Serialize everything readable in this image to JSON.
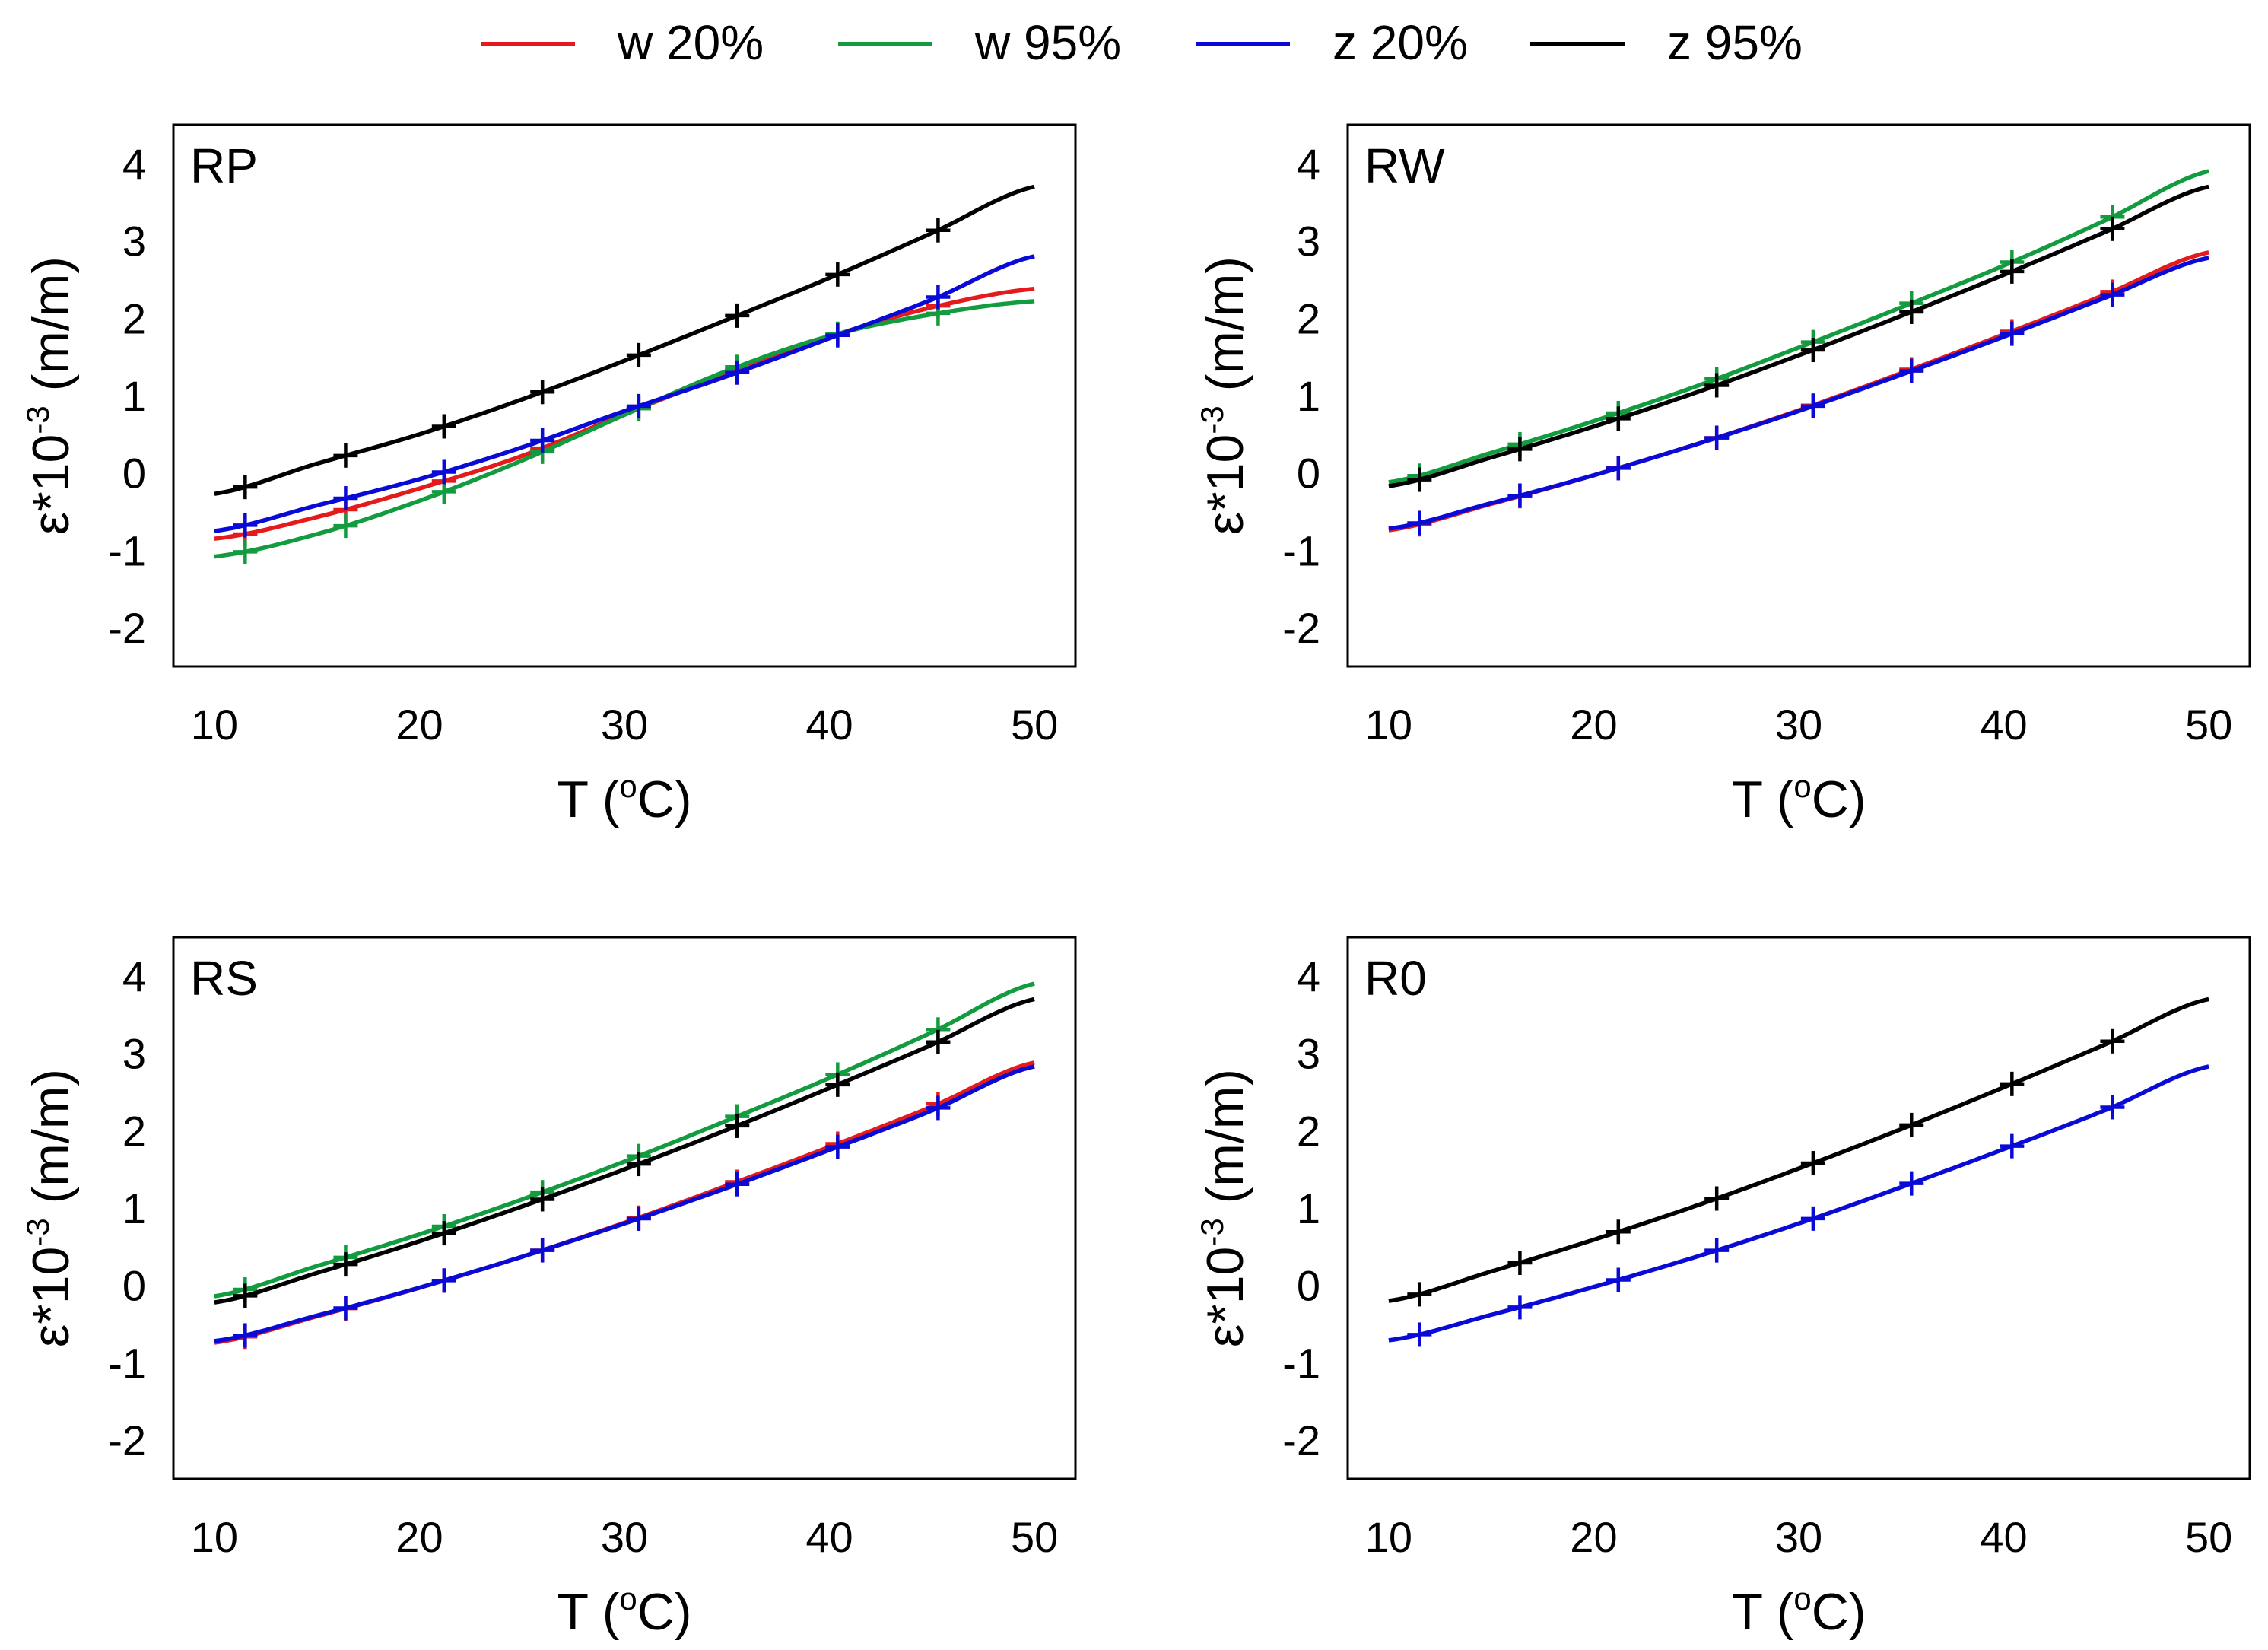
{
  "legend": [
    {
      "label": "w 20%",
      "color": "#e41a1c"
    },
    {
      "label": "w 95%",
      "color": "#139c3f"
    },
    {
      "label": "z 20%",
      "color": "#0a0ad6"
    },
    {
      "label": "z 95%",
      "color": "#000000"
    }
  ],
  "chart_data": [
    {
      "type": "line",
      "title": "RP",
      "xlabel": "T (",
      "xlabel_sup": "o",
      "xlabel_end": "C)",
      "ylabel_main": "ε*10",
      "ylabel_sup": "-3",
      "ylabel_end": " (m/m)",
      "xlim": [
        8,
        52
      ],
      "ylim": [
        -2.5,
        4.5
      ],
      "xticks": [
        10,
        20,
        30,
        40,
        50
      ],
      "yticks": [
        -2,
        -1,
        0,
        1,
        2,
        3,
        4
      ],
      "x": [
        10,
        15,
        20,
        25,
        30,
        35,
        40,
        45,
        50
      ],
      "markers_x": [
        11.5,
        16.4,
        21.2,
        26.0,
        30.7,
        35.5,
        40.4,
        45.3
      ],
      "series": [
        {
          "name": "w 20%",
          "color": "#e41a1c",
          "values": [
            -0.85,
            -0.57,
            -0.2,
            0.22,
            0.76,
            1.28,
            1.76,
            2.14,
            2.38
          ]
        },
        {
          "name": "w 95%",
          "color": "#139c3f",
          "values": [
            -1.08,
            -0.79,
            -0.36,
            0.16,
            0.75,
            1.32,
            1.77,
            2.05,
            2.22
          ]
        },
        {
          "name": "z 20%",
          "color": "#0a0ad6",
          "values": [
            -0.75,
            -0.42,
            -0.08,
            0.33,
            0.8,
            1.25,
            1.74,
            2.24,
            2.8
          ]
        },
        {
          "name": "z 95%",
          "color": "#000000",
          "values": [
            -0.27,
            0.12,
            0.5,
            0.95,
            1.45,
            1.98,
            2.52,
            3.1,
            3.7
          ]
        }
      ]
    },
    {
      "type": "line",
      "title": "RW",
      "xlabel": "T (",
      "xlabel_sup": "o",
      "xlabel_end": "C)",
      "ylabel_main": "ε*10",
      "ylabel_sup": "-3",
      "ylabel_end": " (m/m)",
      "xlim": [
        8,
        52
      ],
      "ylim": [
        -2.5,
        4.5
      ],
      "xticks": [
        10,
        20,
        30,
        40,
        50
      ],
      "yticks": [
        -2,
        -1,
        0,
        1,
        2,
        3,
        4
      ],
      "x": [
        10,
        15,
        20,
        25,
        30,
        35,
        40,
        45,
        50
      ],
      "markers_x": [
        11.5,
        16.4,
        21.2,
        26.0,
        30.7,
        35.5,
        40.4,
        45.3
      ],
      "series": [
        {
          "name": "w 20%",
          "color": "#e41a1c",
          "values": [
            -0.74,
            -0.4,
            -0.03,
            0.37,
            0.81,
            1.29,
            1.79,
            2.31,
            2.85
          ]
        },
        {
          "name": "w 95%",
          "color": "#139c3f",
          "values": [
            -0.12,
            0.26,
            0.67,
            1.12,
            1.62,
            2.14,
            2.68,
            3.27,
            3.9
          ]
        },
        {
          "name": "z 20%",
          "color": "#0a0ad6",
          "values": [
            -0.72,
            -0.39,
            -0.03,
            0.37,
            0.8,
            1.27,
            1.76,
            2.27,
            2.78
          ]
        },
        {
          "name": "z 95%",
          "color": "#000000",
          "values": [
            -0.17,
            0.2,
            0.6,
            1.04,
            1.52,
            2.03,
            2.56,
            3.12,
            3.7
          ]
        }
      ]
    },
    {
      "type": "line",
      "title": "RS",
      "xlabel": "T (",
      "xlabel_sup": "o",
      "xlabel_end": "C)",
      "ylabel_main": "ε*10",
      "ylabel_sup": "-3",
      "ylabel_end": " (m/m)",
      "xlim": [
        8,
        52
      ],
      "ylim": [
        -2.5,
        4.5
      ],
      "xticks": [
        10,
        20,
        30,
        40,
        50
      ],
      "yticks": [
        -2,
        -1,
        0,
        1,
        2,
        3,
        4
      ],
      "x": [
        10,
        15,
        20,
        25,
        30,
        35,
        40,
        45,
        50
      ],
      "markers_x": [
        11.5,
        16.4,
        21.2,
        26.0,
        30.7,
        35.5,
        40.4,
        45.3
      ],
      "series": [
        {
          "name": "w 20%",
          "color": "#e41a1c",
          "values": [
            -0.74,
            -0.4,
            -0.03,
            0.37,
            0.81,
            1.29,
            1.79,
            2.31,
            2.88
          ]
        },
        {
          "name": "w 95%",
          "color": "#139c3f",
          "values": [
            -0.14,
            0.25,
            0.66,
            1.11,
            1.6,
            2.13,
            2.68,
            3.27,
            3.9
          ]
        },
        {
          "name": "z 20%",
          "color": "#0a0ad6",
          "values": [
            -0.72,
            -0.39,
            -0.03,
            0.37,
            0.8,
            1.26,
            1.75,
            2.26,
            2.83
          ]
        },
        {
          "name": "z 95%",
          "color": "#000000",
          "values": [
            -0.22,
            0.16,
            0.57,
            1.02,
            1.5,
            2.01,
            2.55,
            3.11,
            3.7
          ]
        }
      ]
    },
    {
      "type": "line",
      "title": "R0",
      "xlabel": "T (",
      "xlabel_sup": "o",
      "xlabel_end": "C)",
      "ylabel_main": "ε*10",
      "ylabel_sup": "-3",
      "ylabel_end": " (m/m)",
      "xlim": [
        8,
        52
      ],
      "ylim": [
        -2.5,
        4.5
      ],
      "xticks": [
        10,
        20,
        30,
        40,
        50
      ],
      "yticks": [
        -2,
        -1,
        0,
        1,
        2,
        3,
        4
      ],
      "x": [
        10,
        15,
        20,
        25,
        30,
        35,
        40,
        45,
        50
      ],
      "markers_x": [
        11.5,
        16.4,
        21.2,
        26.0,
        30.7,
        35.5,
        40.4,
        45.3
      ],
      "series": [
        {
          "name": "z 20%",
          "color": "#0a0ad6",
          "values": [
            -0.71,
            -0.38,
            -0.02,
            0.37,
            0.8,
            1.27,
            1.76,
            2.27,
            2.83
          ]
        },
        {
          "name": "z 95%",
          "color": "#000000",
          "values": [
            -0.2,
            0.18,
            0.59,
            1.03,
            1.51,
            2.02,
            2.56,
            3.12,
            3.7
          ]
        }
      ]
    }
  ]
}
